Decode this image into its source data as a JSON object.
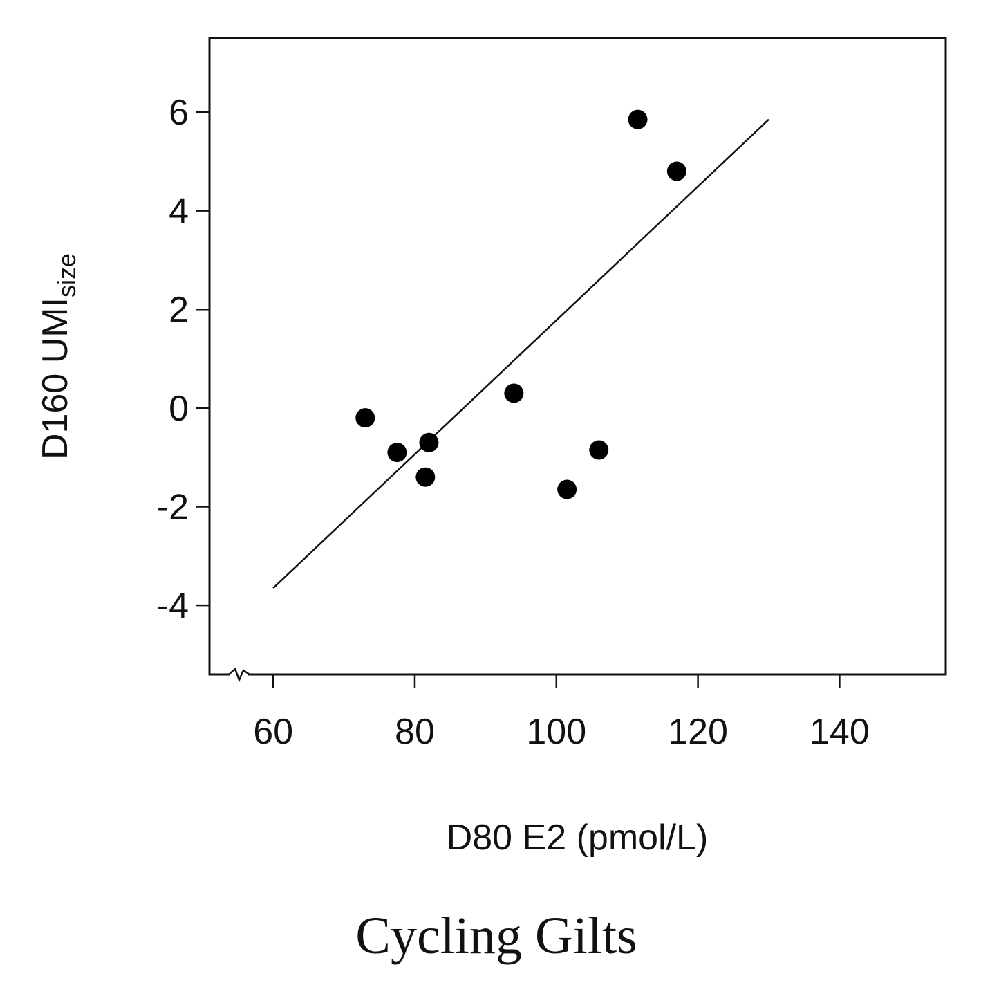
{
  "chart_data": {
    "type": "scatter",
    "title": "Cycling Gilts",
    "xlabel": "D80 E2 (pmol/L)",
    "ylabel": "D160 UMI",
    "ylabel_subscript": "size",
    "xlim": [
      51,
      155
    ],
    "ylim": [
      -5.4,
      7.5
    ],
    "x_ticks": [
      60,
      80,
      100,
      120,
      140
    ],
    "x_tick_labels": [
      "60",
      "80",
      "100",
      "120",
      "140"
    ],
    "y_ticks": [
      -4,
      -2,
      0,
      2,
      4,
      6
    ],
    "y_tick_labels": [
      "-4",
      "-2",
      "0",
      "2",
      "4",
      "6"
    ],
    "axis_break": "x",
    "series": [
      {
        "name": "Cycling Gilts",
        "x": [
          73,
          77.5,
          81.5,
          82,
          94,
          101.5,
          106,
          111.5,
          117
        ],
        "y": [
          -0.2,
          -0.9,
          -1.4,
          -0.7,
          0.3,
          -1.65,
          -0.85,
          5.85,
          4.8
        ]
      }
    ],
    "regression_line": {
      "x": [
        60,
        130
      ],
      "y": [
        -3.65,
        5.85
      ]
    },
    "colors": {
      "points": "#000000",
      "line": "#111111",
      "axes": "#111111"
    }
  }
}
